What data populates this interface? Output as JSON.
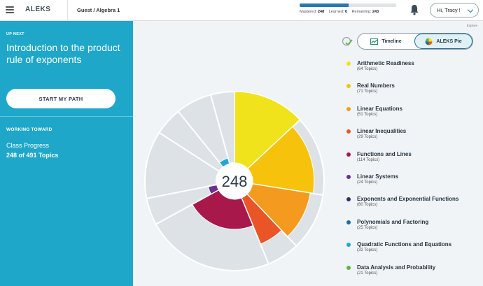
{
  "header": {
    "logo": "ALEKS",
    "breadcrumb": "Guest / Algebra 1",
    "progress": {
      "mastered_label": "Mastered:",
      "mastered": "248",
      "learned_label": "Learned:",
      "learned": "0",
      "remaining_label": "Remaining:",
      "remaining": "243",
      "fill_fraction": 0.505
    },
    "user_greeting": "Hi, Tracy !"
  },
  "sidebar": {
    "up_next_label": "UP NEXT",
    "topic_title": "Introduction to the product rule of exponents",
    "start_button": "START MY PATH",
    "working_toward_label": "WORKING TOWARD",
    "class_progress_label": "Class Progress",
    "class_progress_value": "248 of 491 Topics"
  },
  "main": {
    "explore_link": "Explore",
    "pie_center_value": "248",
    "views": [
      {
        "label": "Timeline",
        "active": false,
        "icon": "chart-line-icon"
      },
      {
        "label": "ALEKS Pie",
        "active": true,
        "icon": "pie-chart-icon"
      }
    ],
    "legend": [
      {
        "name": "Arithmetic Readiness",
        "count": "(64 Topics)",
        "color": "#f0e21b"
      },
      {
        "name": "Real Numbers",
        "count": "(71 Topics)",
        "color": "#f7c20c"
      },
      {
        "name": "Linear Equations",
        "count": "(51 Topics)",
        "color": "#f49b1f"
      },
      {
        "name": "Linear Inequalities",
        "count": "(29 Topics)",
        "color": "#ea5528"
      },
      {
        "name": "Functions and Lines",
        "count": "(114 Topics)",
        "color": "#a8184b"
      },
      {
        "name": "Linear Systems",
        "count": "(24 Topics)",
        "color": "#6b2f8f"
      },
      {
        "name": "Exponents and Exponential Functions",
        "count": "(60 Topics)",
        "color": "#3b2a63"
      },
      {
        "name": "Polynomials and Factoring",
        "count": "(25 Topics)",
        "color": "#1e6aa8"
      },
      {
        "name": "Quadratic Functions and Equations",
        "count": "(32 Topics)",
        "color": "#1ea7d8"
      },
      {
        "name": "Data Analysis and Probability",
        "count": "(21 Topics)",
        "color": "#5cb548"
      }
    ]
  },
  "chart_data": {
    "type": "pie",
    "center_label": "248",
    "slices": [
      {
        "name": "Arithmetic Readiness",
        "topics": 64,
        "mastered_fraction": 1.0,
        "color": "#f0e21b"
      },
      {
        "name": "Real Numbers",
        "topics": 71,
        "mastered_fraction": 0.86,
        "color": "#f7c20c"
      },
      {
        "name": "Linear Equations",
        "topics": 51,
        "mastered_fraction": 0.82,
        "color": "#f49b1f"
      },
      {
        "name": "Linear Inequalities",
        "topics": 29,
        "mastered_fraction": 0.7,
        "color": "#ea5528"
      },
      {
        "name": "Functions and Lines",
        "topics": 114,
        "mastered_fraction": 0.42,
        "color": "#a8184b"
      },
      {
        "name": "Linear Systems",
        "topics": 24,
        "mastered_fraction": 0.12,
        "color": "#6b2f8f"
      },
      {
        "name": "Exponents and Exponential Functions",
        "topics": 60,
        "mastered_fraction": 0.0,
        "color": "#3b2a63"
      },
      {
        "name": "Polynomials and Factoring",
        "topics": 25,
        "mastered_fraction": 0.0,
        "color": "#1e6aa8"
      },
      {
        "name": "Quadratic Functions and Equations",
        "topics": 32,
        "mastered_fraction": 0.08,
        "color": "#1ea7d8"
      },
      {
        "name": "Data Analysis and Probability",
        "topics": 21,
        "mastered_fraction": 0.0,
        "color": "#5cb548"
      }
    ]
  }
}
